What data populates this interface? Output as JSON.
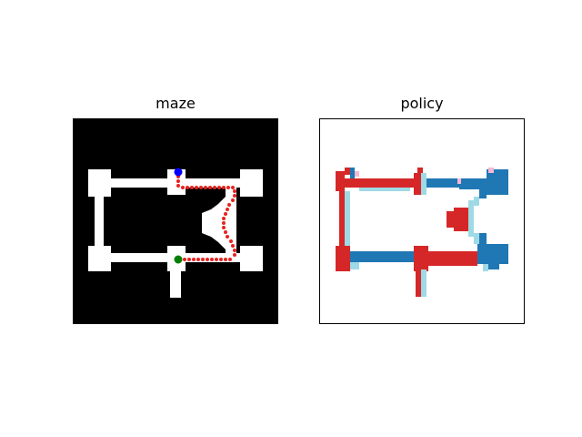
{
  "panels": {
    "maze": {
      "title": "maze"
    },
    "policy": {
      "title": "policy"
    }
  },
  "colors": {
    "wall": "#000000",
    "floor": "#ffffff",
    "path": "#e8231f",
    "start": "#0000ff",
    "goal": "#008000",
    "policy_red": "#d62728",
    "policy_blue": "#1f77b4",
    "policy_lightblue": "#9edae5",
    "policy_pink": "#f7b6d2"
  },
  "legend": []
}
